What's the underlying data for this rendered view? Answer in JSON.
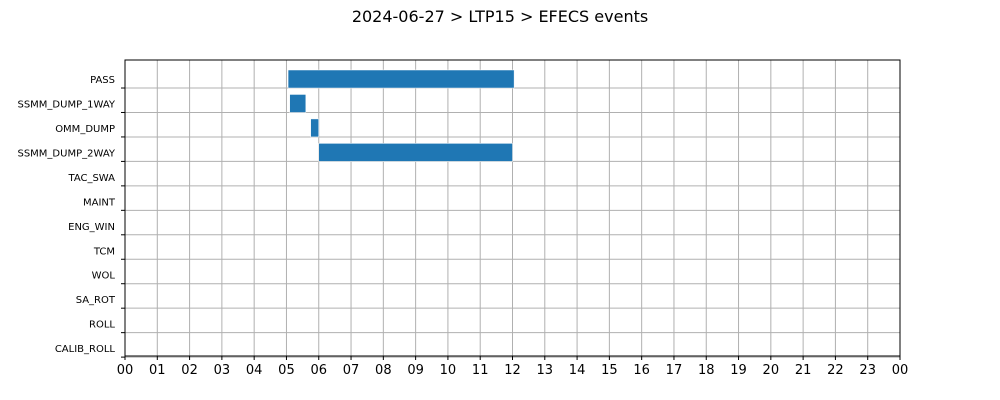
{
  "chart_data": {
    "type": "bar",
    "orientation": "horizontal-timeline",
    "title": "2024-06-27 > LTP15 > EFECS events",
    "xlim": [
      0,
      24
    ],
    "x_tick_labels": [
      "00",
      "01",
      "02",
      "03",
      "04",
      "05",
      "06",
      "07",
      "08",
      "09",
      "10",
      "11",
      "12",
      "13",
      "14",
      "15",
      "16",
      "17",
      "18",
      "19",
      "20",
      "21",
      "22",
      "23",
      "00"
    ],
    "categories": [
      "PASS",
      "SSMM_DUMP_1WAY",
      "OMM_DUMP",
      "SSMM_DUMP_2WAY",
      "TAC_SWA",
      "MAINT",
      "ENG_WIN",
      "TCM",
      "WOL",
      "SA_ROT",
      "ROLL",
      "CALIB_ROLL"
    ],
    "grid": true,
    "bar_color": "#1f77b4",
    "events": [
      {
        "category": "PASS",
        "start": 5.05,
        "end": 12.05
      },
      {
        "category": "SSMM_DUMP_1WAY",
        "start": 5.1,
        "end": 5.6
      },
      {
        "category": "OMM_DUMP",
        "start": 5.75,
        "end": 6.0
      },
      {
        "category": "SSMM_DUMP_2WAY",
        "start": 6.0,
        "end": 12.0
      }
    ]
  }
}
